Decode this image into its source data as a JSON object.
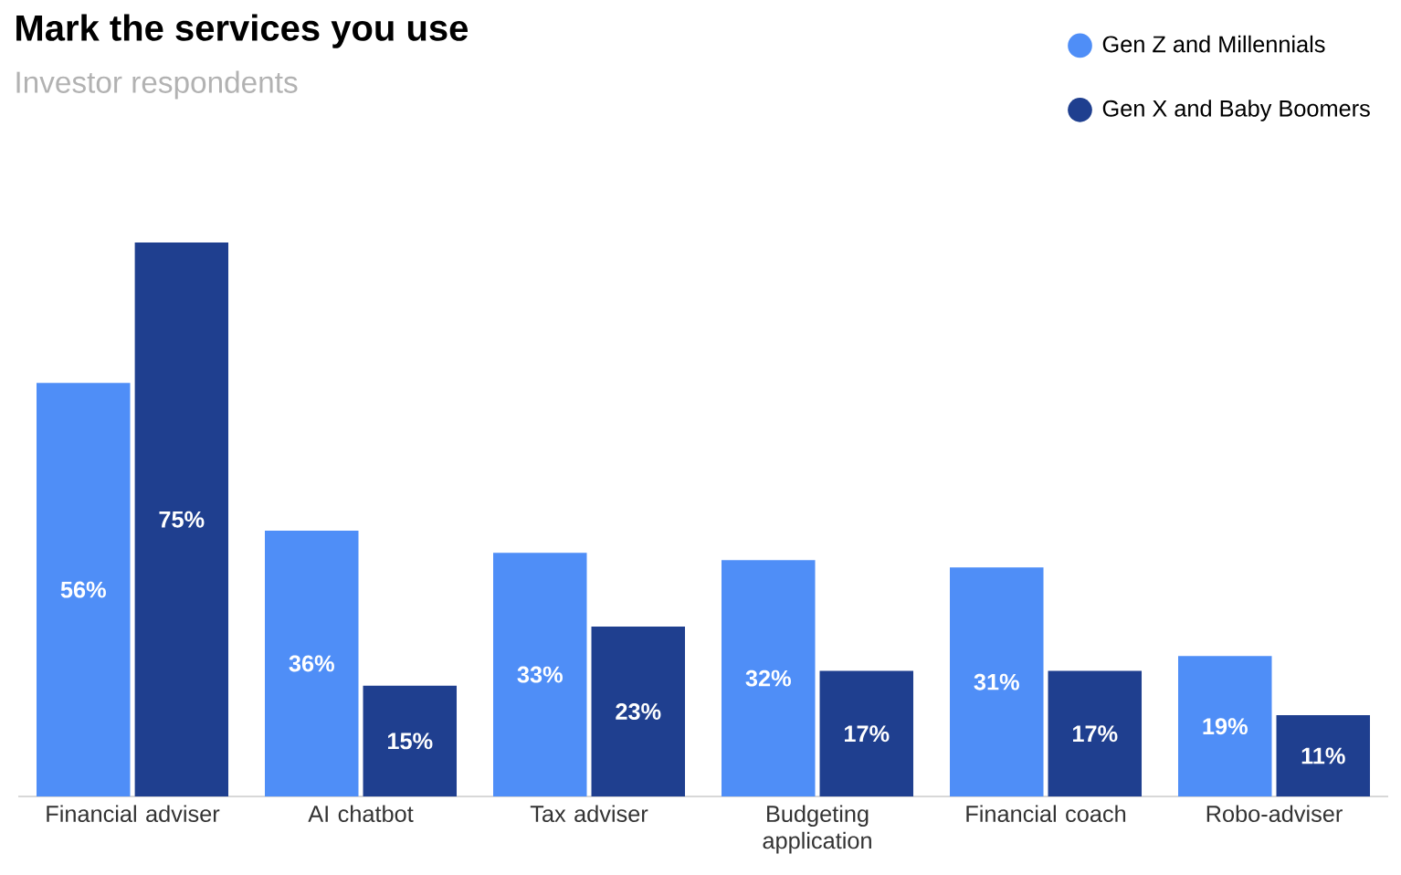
{
  "chart_data": {
    "type": "bar",
    "title": "Mark the services you use",
    "subtitle": "Investor respondents",
    "categories": [
      "Financial adviser",
      "AI chatbot",
      "Tax adviser",
      "Budgeting application",
      "Financial coach",
      "Robo-adviser"
    ],
    "series": [
      {
        "name": "Gen Z and Millennials",
        "color": "#4f8ef7",
        "values": [
          56,
          36,
          33,
          32,
          31,
          19
        ],
        "value_labels": [
          "56%",
          "36%",
          "33%",
          "32%",
          "31%",
          "19%"
        ]
      },
      {
        "name": "Gen X and Baby Boomers",
        "color": "#1f3f8f",
        "values": [
          75,
          15,
          23,
          17,
          17,
          11
        ],
        "value_labels": [
          "75%",
          "15%",
          "23%",
          "17%",
          "17%",
          "11%"
        ]
      }
    ],
    "legend": "top right"
  }
}
